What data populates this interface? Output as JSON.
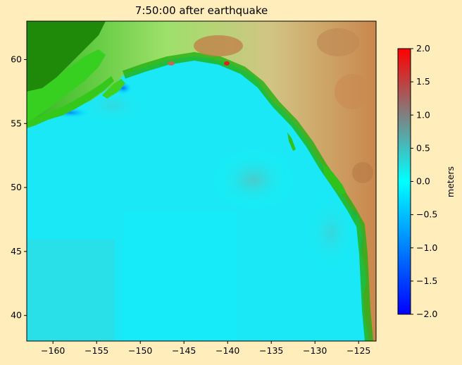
{
  "title": "7:50:00 after earthquake",
  "map": {
    "x_ticks": [
      -160,
      -155,
      -150,
      -145,
      -140,
      -135,
      -130,
      -125
    ],
    "y_ticks": [
      40,
      45,
      50,
      55,
      60
    ],
    "x_tick_labels": [
      "−160",
      "−155",
      "−150",
      "−145",
      "−140",
      "−135",
      "−130",
      "−125"
    ],
    "y_tick_labels": [
      "40",
      "45",
      "50",
      "55",
      "60"
    ],
    "xlim": [
      -163,
      -123
    ],
    "ylim": [
      38,
      63
    ],
    "ocean_color": "#00ffff",
    "land_colors": [
      "#1a7a00",
      "#2fd21a",
      "#7cff5a",
      "#c8d890",
      "#d8b070",
      "#c07a46"
    ]
  },
  "colorbar": {
    "label": "meters",
    "range": [
      -2.0,
      2.0
    ],
    "ticks": [
      2.0,
      1.5,
      1.0,
      0.5,
      0.0,
      -0.5,
      -1.0,
      -1.5,
      -2.0
    ],
    "tick_labels": [
      "2.0",
      "1.5",
      "1.0",
      "0.5",
      "0.0",
      "−0.5",
      "−1.0",
      "−1.5",
      "−2.0"
    ],
    "colors": [
      "#ff0000",
      "#808080",
      "#00ffff",
      "#0000ff"
    ]
  }
}
